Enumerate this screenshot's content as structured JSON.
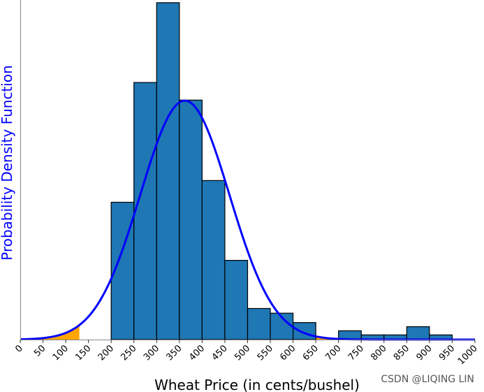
{
  "chart_data": {
    "type": "bar",
    "xlabel": "Wheat Price (in cents/bushel)",
    "ylabel": "Probability Density Function",
    "x_ticks": [
      0,
      50,
      100,
      150,
      200,
      250,
      300,
      350,
      400,
      450,
      500,
      550,
      600,
      650,
      700,
      750,
      800,
      850,
      900,
      950,
      1000
    ],
    "xlim": [
      0,
      1000
    ],
    "ylim": [
      0,
      0.00575
    ],
    "bin_edges": [
      200,
      250,
      300,
      350,
      400,
      450,
      500,
      550,
      600,
      650,
      700,
      750,
      800,
      850,
      900,
      950
    ],
    "densities": [
      0.00234,
      0.00438,
      0.00574,
      0.00408,
      0.00271,
      0.00135,
      0.00053,
      0.00045,
      0.00029,
      0.0,
      0.00015,
      8e-05,
      8e-05,
      0.00022,
      8e-05
    ],
    "normal_curve": {
      "mean": 362,
      "std": 98
    },
    "shaded_regions": [
      [
        0,
        130
      ],
      [
        595,
        1000
      ]
    ],
    "colors": {
      "bars": "#1f77b4",
      "curve": "#0000ff",
      "shade": "#ffa500",
      "ylabel": "#0000ff"
    }
  },
  "watermark": "CSDN @LIQING LIN"
}
